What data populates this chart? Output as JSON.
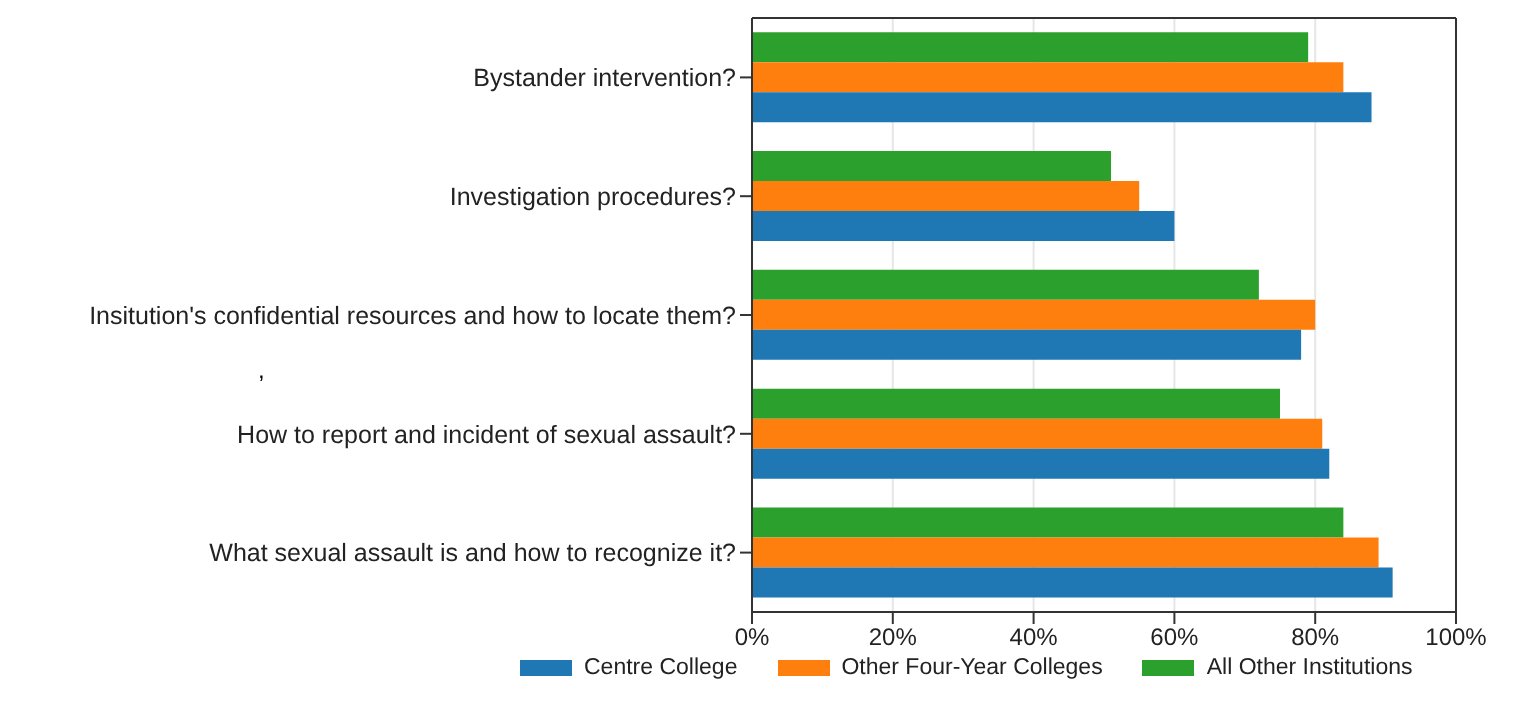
{
  "chart_data": {
    "type": "bar",
    "orientation": "horizontal",
    "categories": [
      "Bystander intervention?",
      "Investigation procedures?",
      "Insitution's confidential resources and how to locate them?",
      "How to report and incident of sexual assault?",
      "What sexual assault is and how to recognize it?"
    ],
    "series": [
      {
        "name": "Centre College",
        "color": "#1f77b4",
        "values": [
          88,
          60,
          78,
          82,
          91
        ]
      },
      {
        "name": "Other Four-Year Colleges",
        "color": "#ff7f0e",
        "values": [
          84,
          55,
          80,
          81,
          89
        ]
      },
      {
        "name": "All Other Institutions",
        "color": "#2ca02c",
        "values": [
          79,
          51,
          72,
          75,
          84
        ]
      }
    ],
    "xlim": [
      0,
      100
    ],
    "xticks": [
      {
        "value": 0,
        "label": "0%"
      },
      {
        "value": 20,
        "label": "20%"
      },
      {
        "value": 40,
        "label": "40%"
      },
      {
        "value": 60,
        "label": "60%"
      },
      {
        "value": 80,
        "label": "80%"
      },
      {
        "value": 100,
        "label": "100%"
      }
    ],
    "grid": "x",
    "legend": "bottom",
    "annotations": [
      ","
    ]
  }
}
